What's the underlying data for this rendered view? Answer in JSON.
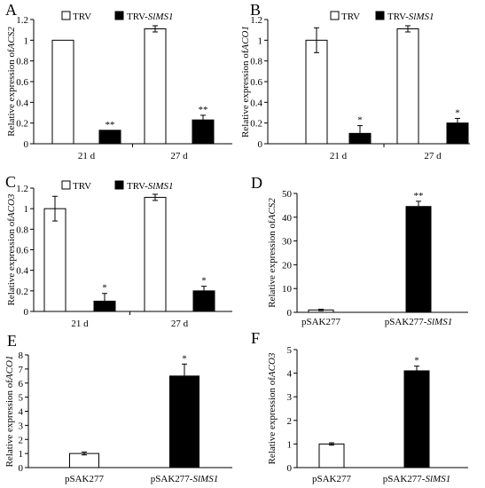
{
  "chart_data": [
    {
      "panel": "A",
      "type": "bar",
      "ylabel": "Relative expression of",
      "ylabel_gene": "ACS2",
      "ylim": [
        0,
        1.2
      ],
      "yticks": [
        "0",
        "0.2",
        "0.4",
        "0.6",
        "0.8",
        "1",
        "1.2"
      ],
      "categories": [
        "21 d",
        "27 d"
      ],
      "series": [
        {
          "name": "TRV",
          "values": [
            1.0,
            1.11
          ],
          "errors": [
            0.0,
            0.03
          ],
          "fill": "#ffffff",
          "sig": [
            "",
            ""
          ]
        },
        {
          "name": "TRV-",
          "name_italic": "SlMS1",
          "values": [
            0.13,
            0.23
          ],
          "errors": [
            0.0,
            0.045
          ],
          "fill": "#000000",
          "sig": [
            "**",
            "**"
          ]
        }
      ]
    },
    {
      "panel": "B",
      "type": "bar",
      "ylabel": "Relative expression of",
      "ylabel_gene": "ACO1",
      "ylim": [
        0,
        1.2
      ],
      "yticks": [
        "0",
        "0.2",
        "0.4",
        "0.6",
        "0.8",
        "1",
        "1.2"
      ],
      "categories": [
        "21 d",
        "27 d"
      ],
      "series": [
        {
          "name": "TRV",
          "values": [
            1.0,
            1.11
          ],
          "errors": [
            0.12,
            0.03
          ],
          "fill": "#ffffff",
          "sig": [
            "",
            ""
          ]
        },
        {
          "name": "TRV-",
          "name_italic": "SlMS1",
          "values": [
            0.1,
            0.2
          ],
          "errors": [
            0.075,
            0.045
          ],
          "fill": "#000000",
          "sig": [
            "*",
            "*"
          ]
        }
      ]
    },
    {
      "panel": "C",
      "type": "bar",
      "ylabel": "Relative expression of",
      "ylabel_gene": "ACO3",
      "ylim": [
        0,
        1.2
      ],
      "yticks": [
        "0",
        "0.2",
        "0.4",
        "0.6",
        "0.8",
        "1",
        "1.2"
      ],
      "categories": [
        "21 d",
        "27 d"
      ],
      "series": [
        {
          "name": "TRV",
          "values": [
            1.0,
            1.11
          ],
          "errors": [
            0.12,
            0.03
          ],
          "fill": "#ffffff",
          "sig": [
            "",
            ""
          ]
        },
        {
          "name": "TRV-",
          "name_italic": "SlMS1",
          "values": [
            0.1,
            0.2
          ],
          "errors": [
            0.075,
            0.045
          ],
          "fill": "#000000",
          "sig": [
            "*",
            "*"
          ]
        }
      ]
    },
    {
      "panel": "D",
      "type": "bar",
      "ylabel": "Relative expression of",
      "ylabel_gene": "ACS2",
      "ylim": [
        0,
        50
      ],
      "yticks": [
        "0",
        "10",
        "20",
        "30",
        "40",
        "50"
      ],
      "categories": [
        {
          "label": "pSAK277",
          "italic": ""
        },
        {
          "label": "pSAK277-",
          "italic": "SlMS1"
        }
      ],
      "values": [
        1.0,
        44.5
      ],
      "errors": [
        0.3,
        2.2
      ],
      "fills": [
        "#ffffff",
        "#000000"
      ],
      "sig": [
        "",
        "**"
      ]
    },
    {
      "panel": "E",
      "type": "bar",
      "ylabel": "Relative expression of",
      "ylabel_gene": "ACO1",
      "ylim": [
        0,
        8
      ],
      "yticks": [
        "0",
        "1",
        "2",
        "3",
        "4",
        "5",
        "6",
        "7",
        "8"
      ],
      "categories": [
        {
          "label": "pSAK277",
          "italic": ""
        },
        {
          "label": "pSAK277-",
          "italic": "SlMS1"
        }
      ],
      "values": [
        1.0,
        6.5
      ],
      "errors": [
        0.1,
        0.85
      ],
      "fills": [
        "#ffffff",
        "#000000"
      ],
      "sig": [
        "",
        "*"
      ]
    },
    {
      "panel": "F",
      "type": "bar",
      "ylabel": "Relative expression of",
      "ylabel_gene": "ACO3",
      "ylim": [
        0,
        5
      ],
      "yticks": [
        "0",
        "1",
        "2",
        "3",
        "4",
        "5"
      ],
      "categories": [
        {
          "label": "pSAK277",
          "italic": ""
        },
        {
          "label": "pSAK277-",
          "italic": "SlMS1"
        }
      ],
      "values": [
        1.0,
        4.1
      ],
      "errors": [
        0.05,
        0.2
      ],
      "fills": [
        "#ffffff",
        "#000000"
      ],
      "sig": [
        "",
        "*"
      ]
    }
  ]
}
